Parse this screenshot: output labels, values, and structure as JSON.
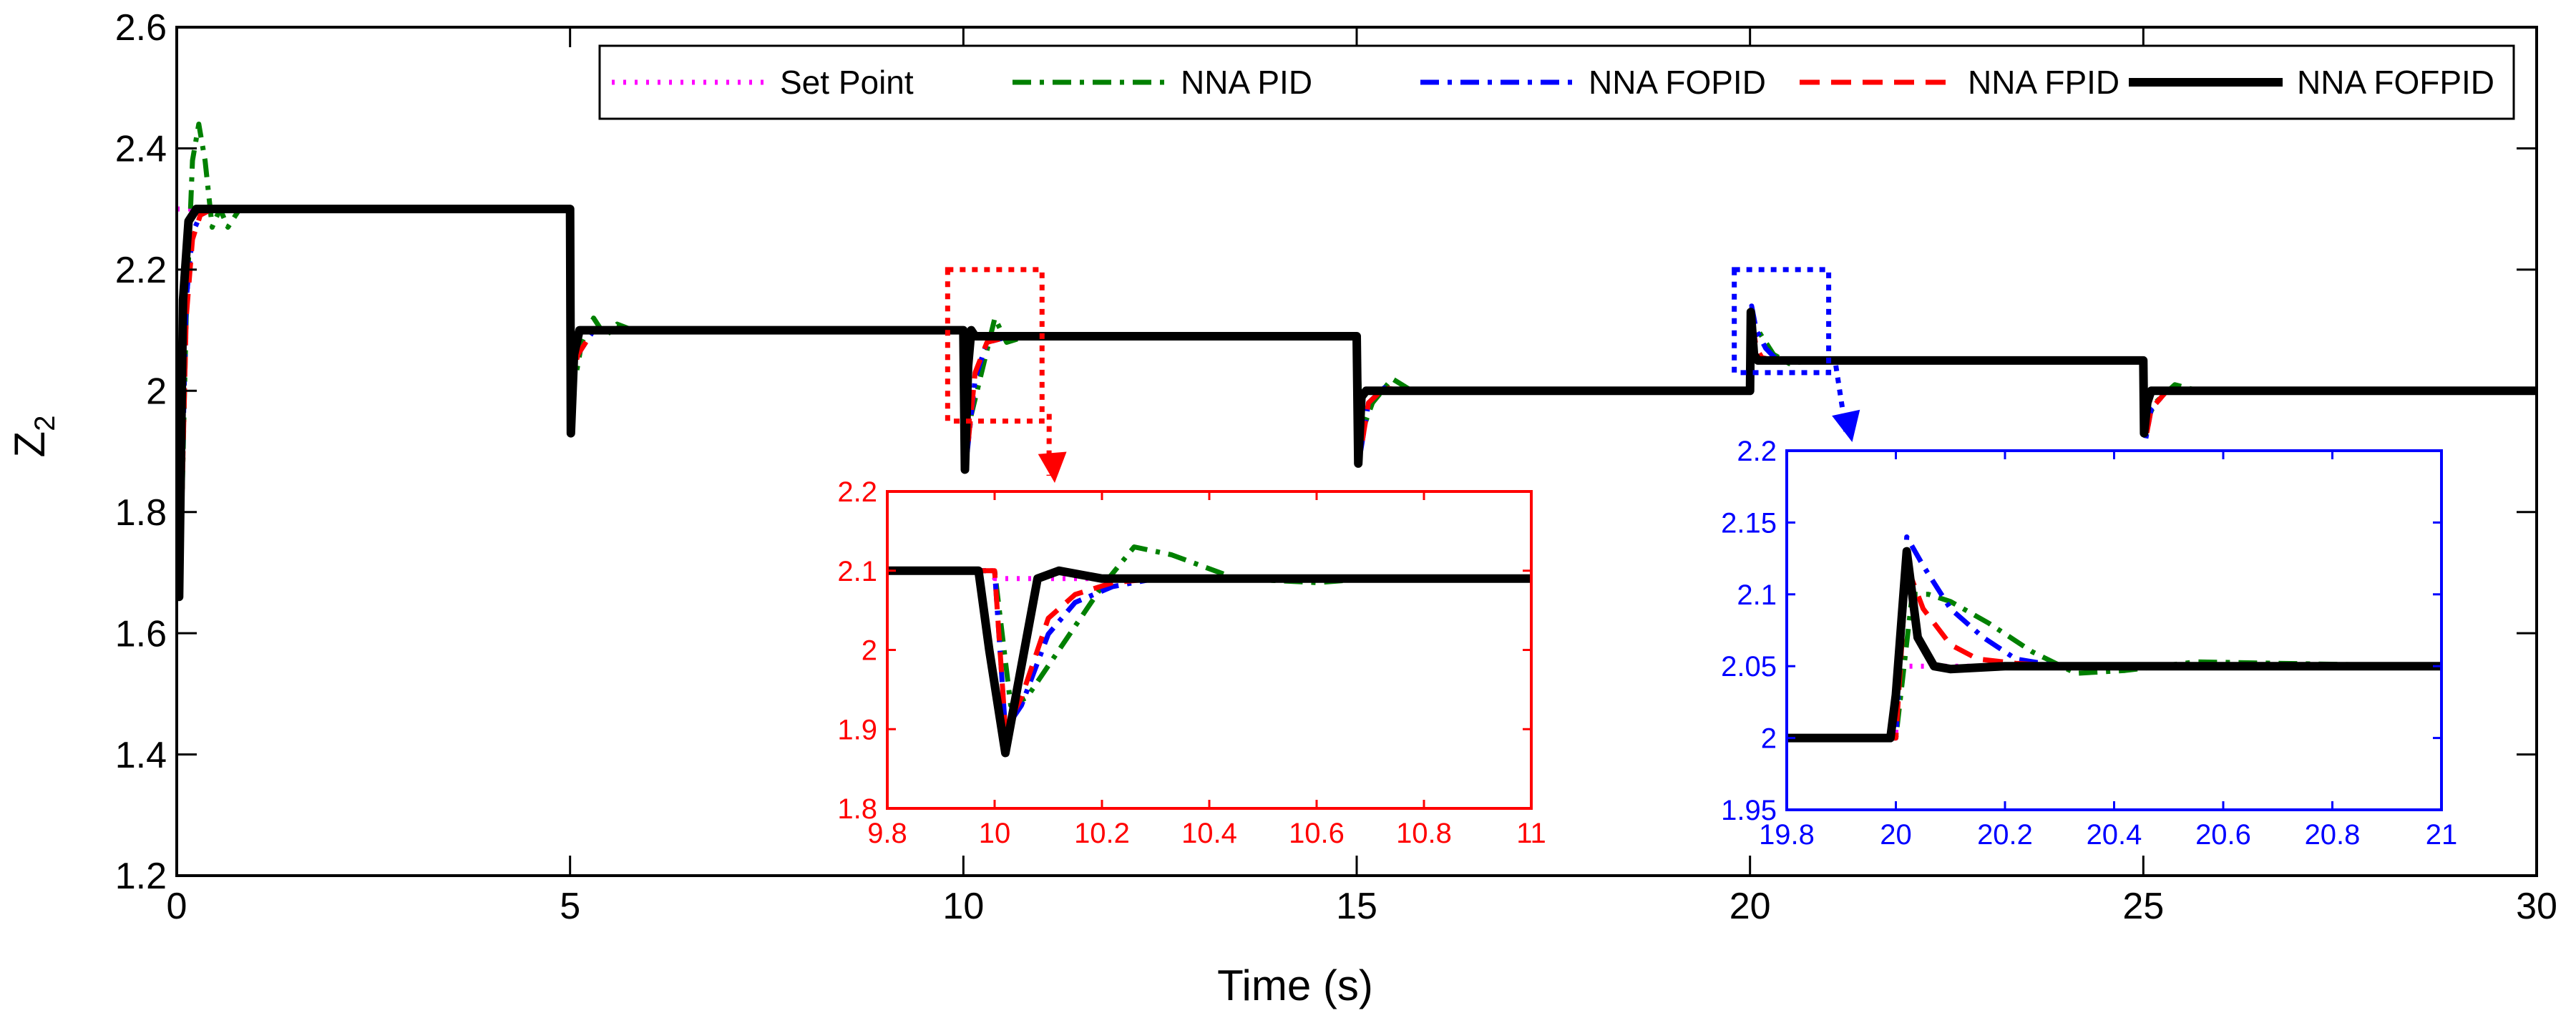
{
  "chart_data": {
    "type": "line",
    "title": "",
    "xlabel": "Time (s)",
    "ylabel": "Z",
    "ylabel_sub": "2",
    "xlim": [
      0,
      30
    ],
    "ylim": [
      1.2,
      2.6
    ],
    "xticks": [
      0,
      5,
      10,
      15,
      20,
      25,
      30
    ],
    "xtick_labels": [
      "0",
      "5",
      "10",
      "15",
      "20",
      "25",
      "30"
    ],
    "yticks": [
      1.2,
      1.4,
      1.6,
      1.8,
      2.0,
      2.2,
      2.4,
      2.6
    ],
    "ytick_labels": [
      "1.2",
      "1.4",
      "1.6",
      "1.8",
      "2",
      "2.2",
      "2.4",
      "2.6"
    ],
    "grid": false,
    "legend_position": "top-right",
    "setpoint_steps": [
      {
        "t": 0,
        "value": 2.3
      },
      {
        "t": 5,
        "value": 2.1
      },
      {
        "t": 10,
        "value": 2.09
      },
      {
        "t": 15,
        "value": 2.0
      },
      {
        "t": 20,
        "value": 2.05
      },
      {
        "t": 25,
        "value": 2.0
      }
    ],
    "series": [
      {
        "name": "Set Point",
        "color": "#ff00ff",
        "style": "dotted",
        "x": [
          0,
          5,
          5,
          10,
          10,
          15,
          15,
          20,
          20,
          25,
          25,
          30
        ],
        "y": [
          2.3,
          2.3,
          2.1,
          2.1,
          2.09,
          2.09,
          2.0,
          2.0,
          2.05,
          2.05,
          2.0,
          2.0
        ]
      },
      {
        "name": "NNA PID",
        "color": "#008000",
        "style": "dashdot",
        "x": [
          0,
          0.05,
          0.12,
          0.2,
          0.28,
          0.36,
          0.45,
          0.55,
          0.65,
          0.8,
          0.9,
          1.0,
          5.0,
          5.02,
          5.08,
          5.15,
          5.3,
          5.45,
          5.6,
          5.8,
          6.0,
          10.0,
          10.05,
          10.1,
          10.25,
          10.4,
          10.55,
          10.8,
          11.2,
          15.0,
          15.06,
          15.2,
          15.45,
          15.7,
          16.0,
          20.0,
          20.04,
          20.1,
          20.3,
          20.5,
          20.8,
          21.2,
          25.0,
          25.04,
          25.15,
          25.4,
          25.7,
          26.2,
          30.0
        ],
        "y": [
          1.8,
          1.72,
          2.12,
          2.38,
          2.44,
          2.38,
          2.27,
          2.3,
          2.27,
          2.3,
          2.3,
          2.3,
          2.3,
          2.05,
          2.03,
          2.08,
          2.12,
          2.09,
          2.11,
          2.1,
          2.1,
          2.1,
          1.92,
          1.96,
          2.04,
          2.12,
          2.08,
          2.09,
          2.09,
          2.09,
          1.93,
          1.98,
          2.02,
          2.0,
          2.0,
          2.0,
          2.1,
          2.1,
          2.06,
          2.045,
          2.05,
          2.05,
          2.05,
          1.95,
          1.98,
          2.01,
          2.0,
          2.0,
          2.0
        ]
      },
      {
        "name": "NNA FOPID",
        "color": "#0000ff",
        "style": "dashdot",
        "x": [
          0,
          0.05,
          0.12,
          0.2,
          0.3,
          0.45,
          0.6,
          5.0,
          5.02,
          5.1,
          5.3,
          5.6,
          10.0,
          10.05,
          10.15,
          10.3,
          10.6,
          15.0,
          15.05,
          15.15,
          15.35,
          15.6,
          20.0,
          20.02,
          20.08,
          20.2,
          20.35,
          20.6,
          25.0,
          25.03,
          25.1,
          25.3,
          25.6,
          30.0
        ],
        "y": [
          1.8,
          1.75,
          2.15,
          2.26,
          2.29,
          2.3,
          2.3,
          2.3,
          2.02,
          2.06,
          2.1,
          2.1,
          2.1,
          1.9,
          2.02,
          2.08,
          2.09,
          2.09,
          1.9,
          1.98,
          2.005,
          2.0,
          2.0,
          2.14,
          2.1,
          2.07,
          2.05,
          2.05,
          2.05,
          1.92,
          1.97,
          2.0,
          2.0,
          2.0
        ]
      },
      {
        "name": "NNA FPID",
        "color": "#ff0000",
        "style": "dashed",
        "x": [
          0,
          0.05,
          0.12,
          0.2,
          0.3,
          0.45,
          0.6,
          5.0,
          5.02,
          5.1,
          5.3,
          5.6,
          10.0,
          10.05,
          10.15,
          10.3,
          10.6,
          15.0,
          15.05,
          15.15,
          15.35,
          15.6,
          20.0,
          20.02,
          20.08,
          20.15,
          20.3,
          20.6,
          25.0,
          25.03,
          25.1,
          25.3,
          25.6,
          30.0
        ],
        "y": [
          1.8,
          1.73,
          2.12,
          2.25,
          2.29,
          2.3,
          2.3,
          2.3,
          2.02,
          2.06,
          2.1,
          2.1,
          2.1,
          1.9,
          2.03,
          2.08,
          2.09,
          2.09,
          1.9,
          1.98,
          2.005,
          2.0,
          2.0,
          2.12,
          2.07,
          2.055,
          2.05,
          2.05,
          2.05,
          1.92,
          1.97,
          2.0,
          2.0,
          2.0
        ]
      },
      {
        "name": "NNA FOFPID",
        "color": "#000000",
        "style": "solid",
        "x": [
          0,
          0.03,
          0.08,
          0.15,
          0.25,
          0.4,
          5.0,
          5.01,
          5.05,
          5.12,
          5.3,
          10.0,
          10.02,
          10.06,
          10.1,
          10.15,
          10.3,
          15.0,
          15.02,
          15.06,
          15.12,
          15.3,
          20.0,
          20.01,
          20.05,
          20.1,
          20.2,
          25.0,
          25.01,
          25.05,
          25.1,
          25.3,
          30.0
        ],
        "y": [
          1.8,
          1.66,
          2.15,
          2.28,
          2.3,
          2.3,
          2.3,
          1.93,
          2.06,
          2.1,
          2.1,
          2.1,
          1.87,
          2.04,
          2.1,
          2.09,
          2.09,
          2.09,
          1.88,
          1.99,
          2.0,
          2.0,
          2.0,
          2.13,
          2.06,
          2.05,
          2.05,
          2.05,
          1.93,
          1.98,
          2.0,
          2.0,
          2.0
        ]
      }
    ],
    "insets": [
      {
        "name": "zoom-10s",
        "color": "#ff0000",
        "xlim": [
          9.8,
          11.0
        ],
        "ylim": [
          1.8,
          2.2
        ],
        "source_region": {
          "x": [
            9.8,
            11.0
          ],
          "y": [
            1.95,
            2.2
          ]
        },
        "xtick_labels": [
          "9.8",
          "10",
          "10.2",
          "10.4",
          "10.6",
          "10.8",
          "11"
        ],
        "xticks": [
          9.8,
          10.0,
          10.2,
          10.4,
          10.6,
          10.8,
          11.0
        ],
        "ytick_labels": [
          "1.8",
          "1.9",
          "2",
          "2.1",
          "2.2"
        ],
        "yticks": [
          1.8,
          1.9,
          2.0,
          2.1,
          2.2
        ],
        "series": [
          {
            "name": "Set Point",
            "x": [
              9.8,
              10.0,
              10.0,
              11.0
            ],
            "y": [
              2.1,
              2.1,
              2.09,
              2.09
            ]
          },
          {
            "name": "NNA PID",
            "x": [
              9.8,
              10.0,
              10.03,
              10.06,
              10.12,
              10.2,
              10.26,
              10.33,
              10.45,
              10.6,
              10.7,
              10.85,
              11.0
            ],
            "y": [
              2.1,
              2.1,
              1.93,
              1.94,
              2.0,
              2.08,
              2.13,
              2.12,
              2.09,
              2.085,
              2.09,
              2.09,
              2.09
            ]
          },
          {
            "name": "NNA FOPID",
            "x": [
              9.8,
              10.0,
              10.02,
              10.05,
              10.1,
              10.15,
              10.22,
              10.3,
              10.4,
              11.0
            ],
            "y": [
              2.1,
              2.1,
              1.9,
              1.93,
              2.02,
              2.06,
              2.08,
              2.09,
              2.09,
              2.09
            ]
          },
          {
            "name": "NNA FPID",
            "x": [
              9.8,
              10.0,
              10.02,
              10.05,
              10.1,
              10.15,
              10.22,
              10.3,
              10.4,
              11.0
            ],
            "y": [
              2.1,
              2.1,
              1.9,
              1.94,
              2.04,
              2.07,
              2.085,
              2.09,
              2.09,
              2.09
            ]
          },
          {
            "name": "NNA FOFPID",
            "x": [
              9.8,
              9.97,
              9.99,
              10.02,
              10.05,
              10.08,
              10.12,
              10.2,
              11.0
            ],
            "y": [
              2.1,
              2.1,
              2.0,
              1.87,
              1.98,
              2.09,
              2.1,
              2.09,
              2.09
            ]
          }
        ]
      },
      {
        "name": "zoom-20s",
        "color": "#0000ff",
        "xlim": [
          19.8,
          21.0
        ],
        "ylim": [
          1.95,
          2.2
        ],
        "source_region": {
          "x": [
            19.8,
            21.0
          ],
          "y": [
            2.03,
            2.2
          ]
        },
        "xtick_labels": [
          "19.8",
          "20",
          "20.2",
          "20.4",
          "20.6",
          "20.8",
          "21"
        ],
        "xticks": [
          19.8,
          20.0,
          20.2,
          20.4,
          20.6,
          20.8,
          21.0
        ],
        "ytick_labels": [
          "1.95",
          "2",
          "2.05",
          "2.1",
          "2.15",
          "2.2"
        ],
        "yticks": [
          1.95,
          2.0,
          2.05,
          2.1,
          2.15,
          2.2
        ],
        "series": [
          {
            "name": "Set Point",
            "x": [
              19.8,
              20.0,
              20.0,
              21.0
            ],
            "y": [
              2.0,
              2.0,
              2.05,
              2.05
            ]
          },
          {
            "name": "NNA PID",
            "x": [
              19.8,
              20.0,
              20.03,
              20.06,
              20.1,
              20.17,
              20.25,
              20.33,
              20.42,
              20.55,
              20.7,
              21.0
            ],
            "y": [
              2.0,
              2.0,
              2.1,
              2.1,
              2.095,
              2.08,
              2.06,
              2.045,
              2.047,
              2.053,
              2.052,
              2.05
            ]
          },
          {
            "name": "NNA FOPID",
            "x": [
              19.8,
              20.0,
              20.02,
              20.05,
              20.1,
              20.16,
              20.22,
              20.3,
              20.45,
              21.0
            ],
            "y": [
              2.0,
              2.0,
              2.14,
              2.12,
              2.09,
              2.07,
              2.055,
              2.05,
              2.05,
              2.05
            ]
          },
          {
            "name": "NNA FPID",
            "x": [
              19.8,
              20.0,
              20.02,
              20.05,
              20.1,
              20.15,
              20.22,
              20.3,
              21.0
            ],
            "y": [
              2.0,
              2.0,
              2.12,
              2.09,
              2.065,
              2.055,
              2.052,
              2.05,
              2.05
            ]
          },
          {
            "name": "NNA FOFPID",
            "x": [
              19.8,
              19.99,
              20.0,
              20.02,
              20.04,
              20.07,
              20.1,
              20.2,
              21.0
            ],
            "y": [
              2.0,
              2.0,
              2.03,
              2.13,
              2.07,
              2.05,
              2.048,
              2.05,
              2.05
            ]
          }
        ]
      }
    ]
  }
}
